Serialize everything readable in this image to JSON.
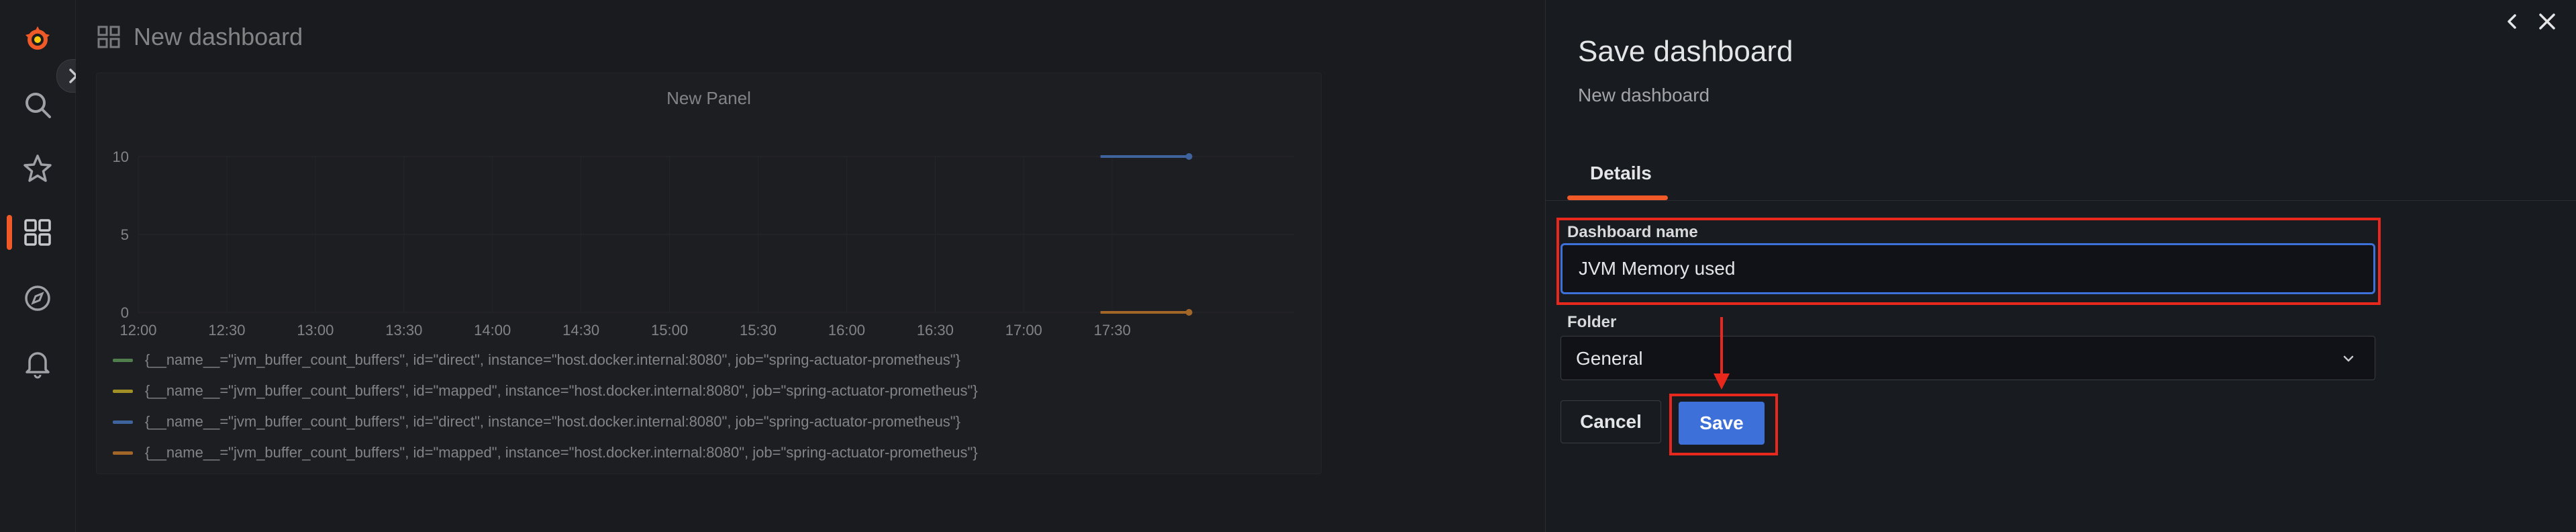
{
  "dashboard": {
    "title": "New dashboard",
    "panel": {
      "title": "New Panel",
      "legend": [
        {
          "label": "{__name__=\"jvm_buffer_count_buffers\", id=\"direct\", instance=\"host.docker.internal:8080\", job=\"spring-actuator-prometheus\"}",
          "color": "#73bf69"
        },
        {
          "label": "{__name__=\"jvm_buffer_count_buffers\", id=\"mapped\", instance=\"host.docker.internal:8080\", job=\"spring-actuator-prometheus\"}",
          "color": "#fade2a"
        },
        {
          "label": "{__name__=\"jvm_buffer_count_buffers\", id=\"direct\", instance=\"host.docker.internal:8080\", job=\"spring-actuator-prometheus\"}",
          "color": "#5794f2"
        },
        {
          "label": "{__name__=\"jvm_buffer_count_buffers\", id=\"mapped\", instance=\"host.docker.internal:8080\", job=\"spring-actuator-prometheus\"}",
          "color": "#ff9830"
        }
      ]
    }
  },
  "chart_data": {
    "type": "line",
    "x_ticks": [
      "12:00",
      "12:30",
      "13:00",
      "13:30",
      "14:00",
      "14:30",
      "15:00",
      "15:30",
      "16:00",
      "16:30",
      "17:00",
      "17:30"
    ],
    "y_ticks": [
      0,
      5,
      10
    ],
    "ylim": [
      0,
      10
    ],
    "grid": true,
    "series": [
      {
        "x": [
          "17:26",
          "17:56"
        ],
        "values": [
          10,
          10
        ],
        "color": "#5794f2"
      },
      {
        "x": [
          "17:26",
          "17:56"
        ],
        "values": [
          0,
          0
        ],
        "color": "#ff9830"
      }
    ]
  },
  "drawer": {
    "title": "Save dashboard",
    "subtitle": "New dashboard",
    "tab": "Details",
    "name_label": "Dashboard name",
    "name_value": "JVM Memory used",
    "folder_label": "Folder",
    "folder_value": "General",
    "cancel_label": "Cancel",
    "save_label": "Save"
  },
  "colors": {
    "accent": "#f05a28",
    "primary": "#3d71d9",
    "highlight": "#e8281c"
  }
}
